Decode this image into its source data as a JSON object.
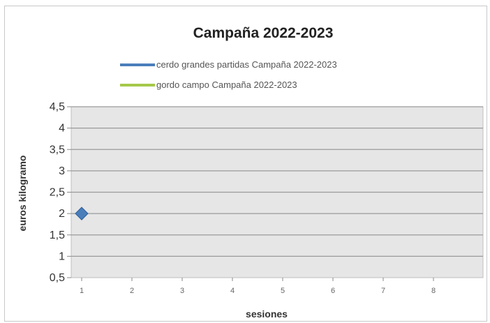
{
  "chart_data": {
    "type": "line",
    "title": "Campaña 2022-2023",
    "xlabel": "sesiones",
    "ylabel": "euros kilogramo",
    "categories": [
      "1",
      "2",
      "3",
      "4",
      "5",
      "6",
      "7",
      "8"
    ],
    "yticks": [
      "0,5",
      "1",
      "1,5",
      "2",
      "2,5",
      "3",
      "3,5",
      "4",
      "4,5"
    ],
    "ylim": [
      0.5,
      4.5
    ],
    "grid": true,
    "legend_position": "top",
    "series": [
      {
        "name": "cerdo grandes partidas Campaña 2022-2023",
        "color": "#4a7ebb",
        "marker": "diamond",
        "values": [
          2,
          null,
          null,
          null,
          null,
          null,
          null,
          null
        ]
      },
      {
        "name": "gordo campo Campaña 2022-2023",
        "color": "#a5c949",
        "marker": "none",
        "values": [
          null,
          null,
          null,
          null,
          null,
          null,
          null,
          null
        ]
      }
    ]
  }
}
